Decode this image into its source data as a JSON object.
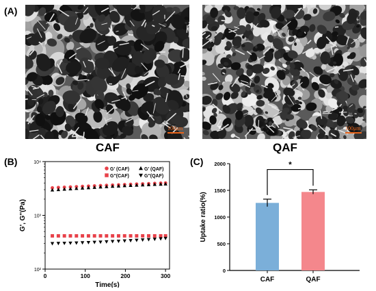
{
  "panels": {
    "a_label": "(A)",
    "b_label": "(B)",
    "c_label": "(C)"
  },
  "sem_images": [
    {
      "caption": "CAF",
      "scale_bar": "100μm"
    },
    {
      "caption": "QAF",
      "scale_bar": "100μm"
    }
  ],
  "colors": {
    "caf_marker": "#e8424a",
    "qaf_marker": "#000000",
    "caf_bar": "#7bafd9",
    "qaf_bar": "#f4878c",
    "scale_bar": "#e8641a"
  },
  "chart_data": [
    {
      "type": "scatter",
      "xlabel": "Time(s)",
      "ylabel": "G', G''(Pa)",
      "xlim": [
        0,
        310
      ],
      "ylim": [
        100,
        10000
      ],
      "log_y": true,
      "x_ticks": [
        "0",
        "100",
        "200",
        "300"
      ],
      "y_ticks": [
        "10²",
        "10³",
        "10⁴"
      ],
      "legend_position": "top-right",
      "series": [
        {
          "name": "G' (CAF)",
          "marker": "circle",
          "color": "#e8424a",
          "x": [
            18,
            33,
            48,
            63,
            78,
            93,
            108,
            123,
            138,
            153,
            168,
            183,
            198,
            213,
            228,
            243,
            258,
            273,
            288,
            300
          ],
          "y": [
            3250,
            3290,
            3330,
            3370,
            3410,
            3450,
            3490,
            3530,
            3570,
            3610,
            3650,
            3690,
            3730,
            3770,
            3810,
            3850,
            3890,
            3930,
            3970,
            4000
          ]
        },
        {
          "name": "G' (QAF)",
          "marker": "triangle-up",
          "color": "#000000",
          "x": [
            18,
            33,
            48,
            63,
            78,
            93,
            108,
            123,
            138,
            153,
            168,
            183,
            198,
            213,
            228,
            243,
            258,
            273,
            288,
            300
          ],
          "y": [
            2950,
            3000,
            3050,
            3100,
            3150,
            3200,
            3250,
            3300,
            3350,
            3400,
            3450,
            3500,
            3540,
            3580,
            3620,
            3660,
            3700,
            3740,
            3780,
            3820
          ]
        },
        {
          "name": "G''(CAF)",
          "marker": "square",
          "color": "#e8424a",
          "x": [
            18,
            33,
            48,
            63,
            78,
            93,
            108,
            123,
            138,
            153,
            168,
            183,
            198,
            213,
            228,
            243,
            258,
            273,
            288,
            300
          ],
          "y": [
            415,
            415,
            415,
            415,
            415,
            415,
            415,
            415,
            415,
            415,
            415,
            415,
            415,
            415,
            415,
            415,
            415,
            415,
            415,
            415
          ]
        },
        {
          "name": "G''(QAF)",
          "marker": "triangle-down",
          "color": "#000000",
          "x": [
            18,
            33,
            48,
            63,
            78,
            93,
            108,
            123,
            138,
            153,
            168,
            183,
            198,
            213,
            228,
            243,
            258,
            273,
            288,
            300
          ],
          "y": [
            300,
            302,
            304,
            306,
            308,
            311,
            314,
            317,
            320,
            324,
            328,
            332,
            336,
            341,
            346,
            351,
            356,
            362,
            368,
            375
          ]
        }
      ]
    },
    {
      "type": "bar",
      "categories": [
        "CAF",
        "QAF"
      ],
      "values": [
        1265,
        1470
      ],
      "errors": [
        70,
        40
      ],
      "ylabel": "Uptake ratio(%)",
      "ylim": [
        0,
        2000
      ],
      "y_ticks": [
        "0",
        "500",
        "1000",
        "1500",
        "2000"
      ],
      "annotation": "*"
    }
  ]
}
